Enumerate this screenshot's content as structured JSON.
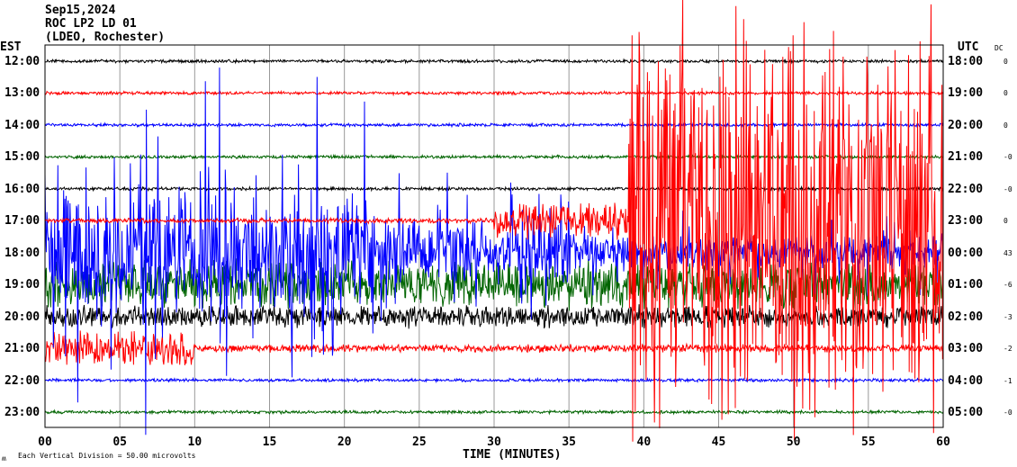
{
  "header": {
    "date": "Sep15,2024",
    "station": "ROC LP2 LD 01",
    "network": "(LDEO, Rochester)"
  },
  "footer": {
    "scale_note": "Each Vertical Division = 50.00 microvolts",
    "logo_mark": "M"
  },
  "chart_data": {
    "type": "line",
    "title": "Sep15,2024 ROC LP2 LD 01 (LDEO, Rochester)",
    "xlabel": "TIME (MINUTES)",
    "left_axis_label": "EST",
    "right_axis_label": "UTC",
    "dc_label": "DC",
    "xlim": [
      0,
      60
    ],
    "x_ticks": [
      "00",
      "05",
      "10",
      "15",
      "20",
      "25",
      "30",
      "35",
      "40",
      "45",
      "50",
      "55",
      "60"
    ],
    "rows": [
      {
        "est": "12:00",
        "utc": "18:00",
        "dc": "0",
        "color": "#000000"
      },
      {
        "est": "13:00",
        "utc": "19:00",
        "dc": "0",
        "color": "#ff0000"
      },
      {
        "est": "14:00",
        "utc": "20:00",
        "dc": "0",
        "color": "#0000ff"
      },
      {
        "est": "15:00",
        "utc": "21:00",
        "dc": "-0",
        "color": "#006400"
      },
      {
        "est": "16:00",
        "utc": "22:00",
        "dc": "-0",
        "color": "#000000"
      },
      {
        "est": "17:00",
        "utc": "23:00",
        "dc": "0",
        "color": "#ff0000"
      },
      {
        "est": "18:00",
        "utc": "00:00",
        "dc": "43",
        "color": "#0000ff"
      },
      {
        "est": "19:00",
        "utc": "01:00",
        "dc": "-6",
        "color": "#006400"
      },
      {
        "est": "20:00",
        "utc": "02:00",
        "dc": "-3",
        "color": "#000000"
      },
      {
        "est": "21:00",
        "utc": "03:00",
        "dc": "-2",
        "color": "#ff0000"
      },
      {
        "est": "22:00",
        "utc": "04:00",
        "dc": "-1",
        "color": "#0000ff"
      },
      {
        "est": "23:00",
        "utc": "05:00",
        "dc": "-0",
        "color": "#006400"
      }
    ]
  }
}
